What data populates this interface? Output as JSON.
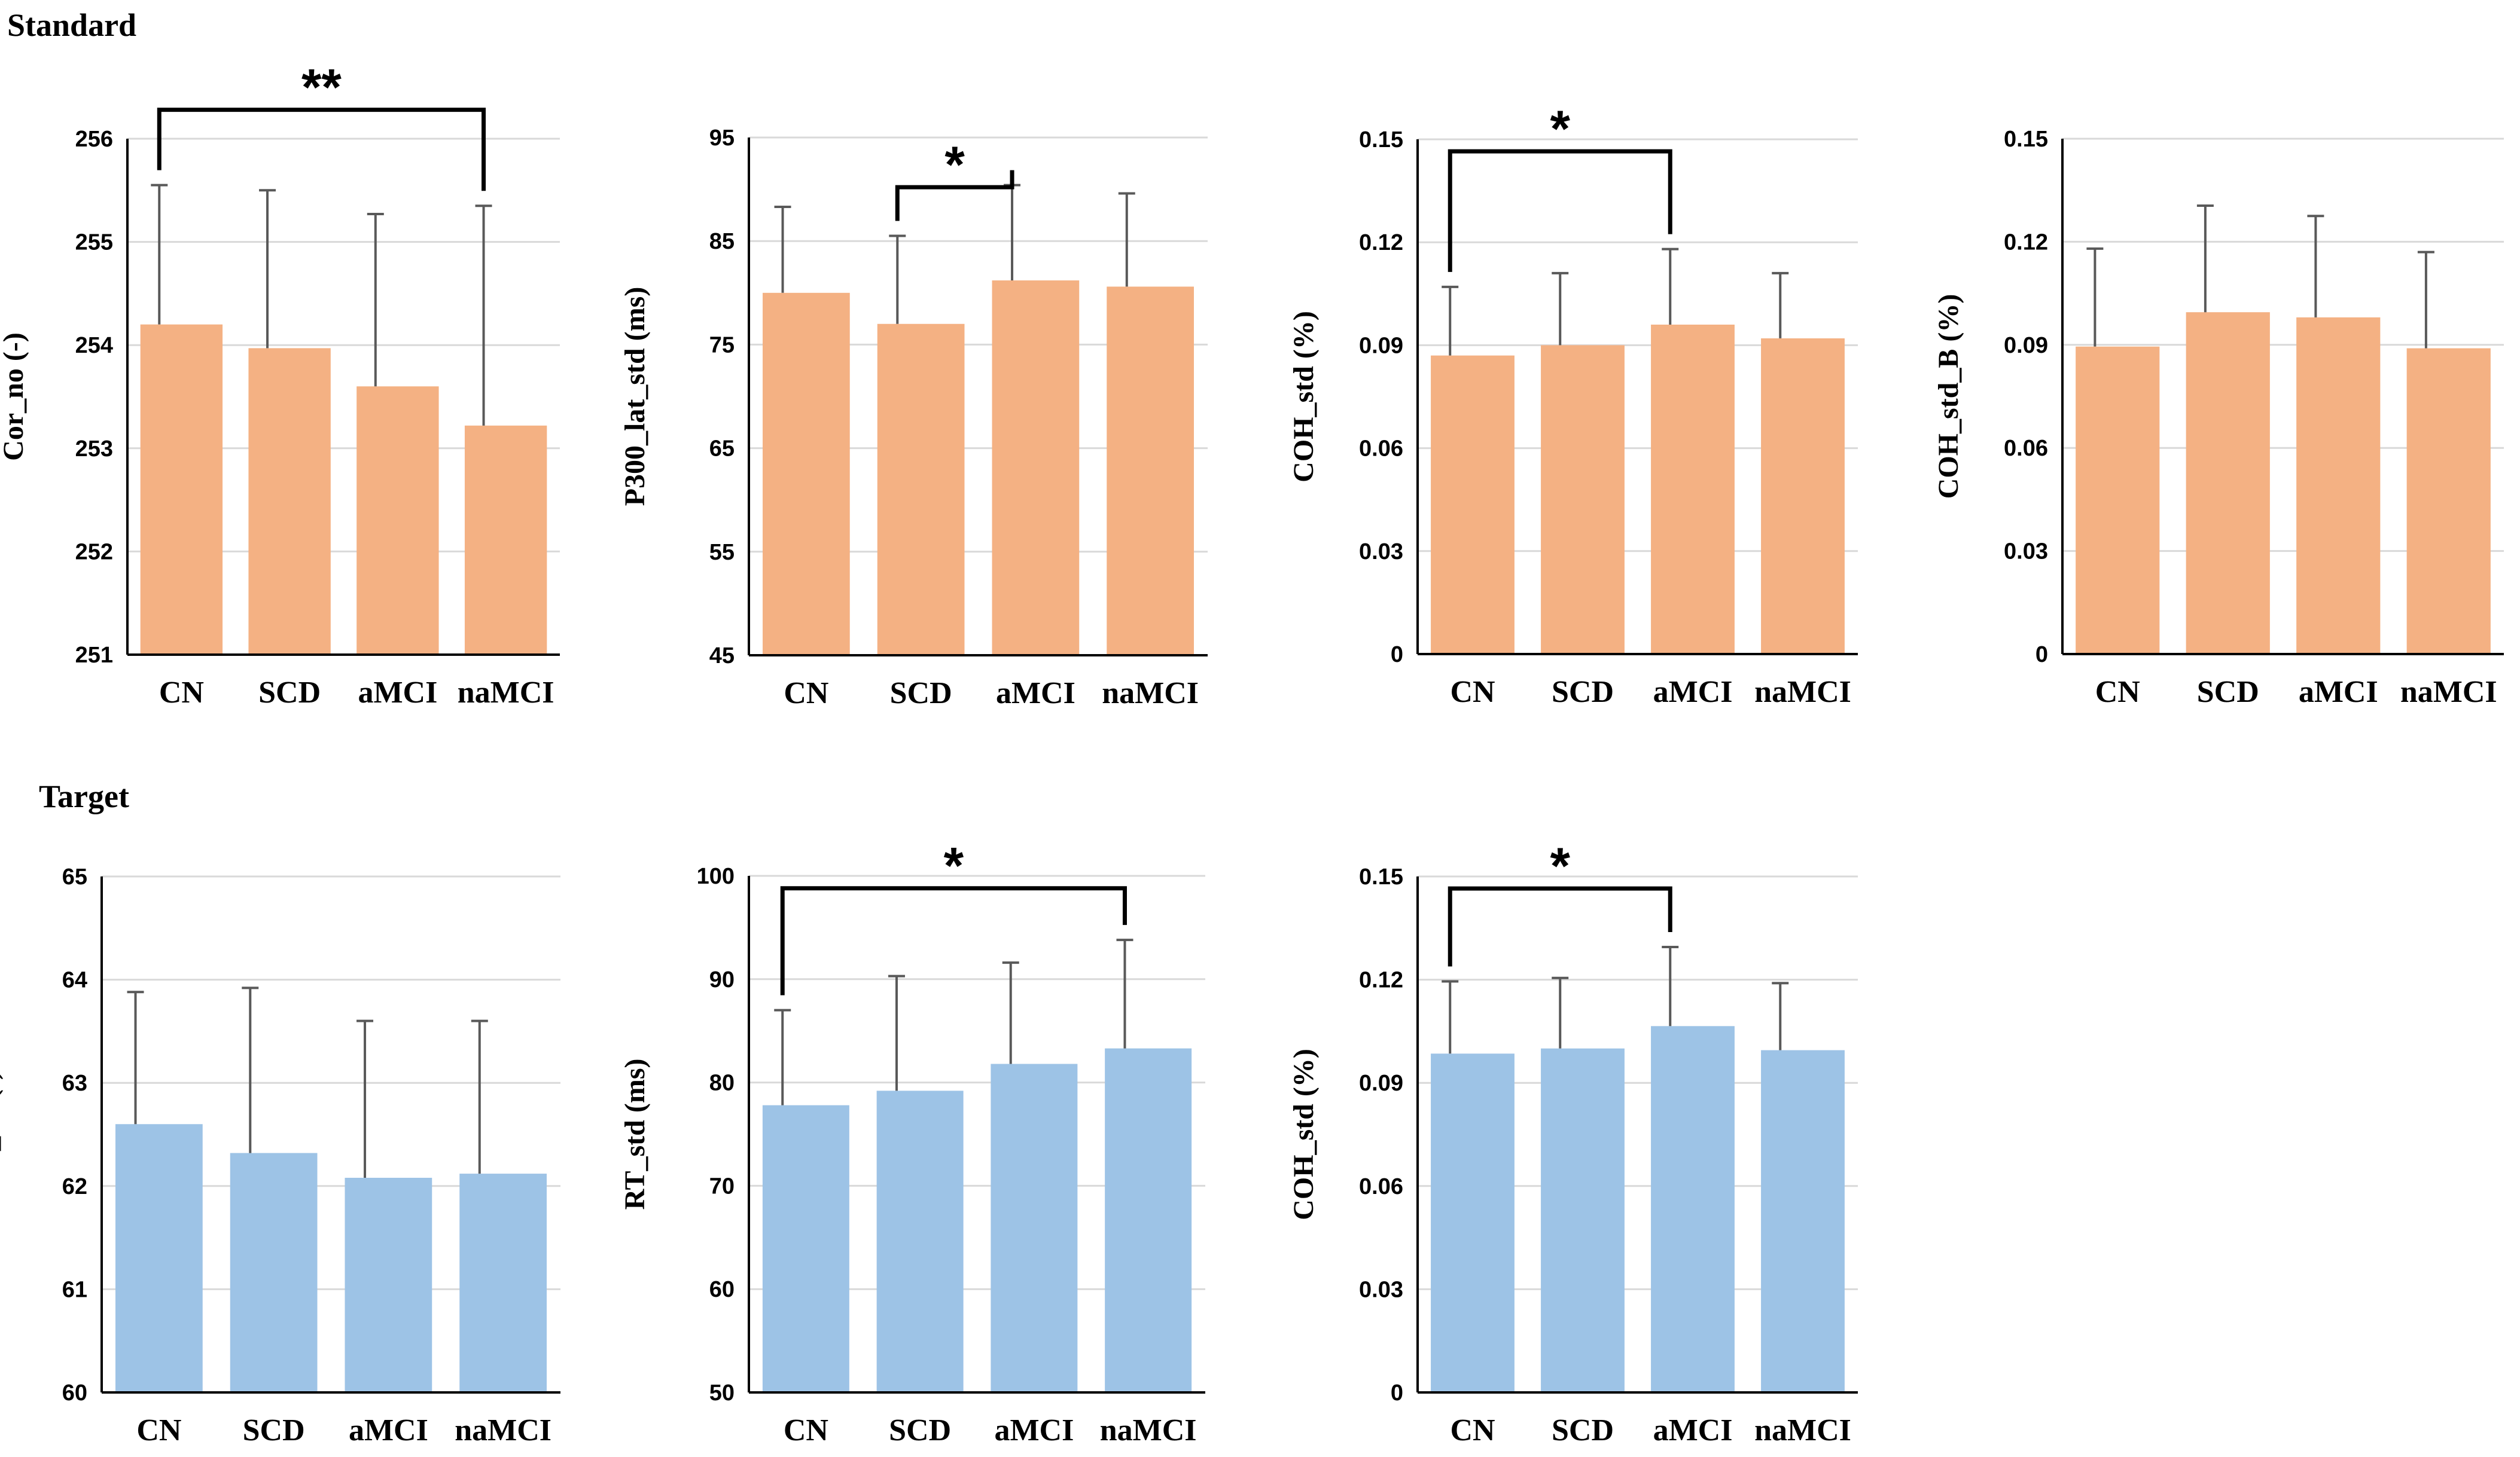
{
  "sections": [
    {
      "key": "standard",
      "title": "Standard"
    },
    {
      "key": "target",
      "title": "Target"
    }
  ],
  "colors": {
    "standard": "#f4b183",
    "target": "#9dc3e6"
  },
  "chart_data": [
    {
      "type": "bar",
      "section": "standard",
      "ylabel": "Cor_no (-)",
      "categories": [
        "CN",
        "SCD",
        "aMCI",
        "naMCI"
      ],
      "values": [
        254.2,
        253.97,
        253.6,
        253.22
      ],
      "errors": [
        1.35,
        1.53,
        1.67,
        2.13
      ],
      "ylim": [
        251,
        256
      ],
      "yticks": [
        "251",
        "252",
        "253",
        "254",
        "255",
        "256"
      ],
      "significance": {
        "from": 0,
        "to": 3,
        "label": "**",
        "level": 256.28
      }
    },
    {
      "type": "bar",
      "section": "standard",
      "ylabel": "P300_lat_std (ms)",
      "categories": [
        "CN",
        "SCD",
        "aMCI",
        "naMCI"
      ],
      "values": [
        80,
        77,
        81.2,
        80.6
      ],
      "errors": [
        8.3,
        8.5,
        9.2,
        9
      ],
      "ylim": [
        45,
        95
      ],
      "yticks": [
        "45",
        "55",
        "65",
        "75",
        "85",
        "95"
      ],
      "significance": {
        "from": 1,
        "to": 2,
        "label": "*",
        "level": 90.2
      }
    },
    {
      "type": "bar",
      "section": "standard",
      "ylabel": "COH_std (%)",
      "categories": [
        "CN",
        "SCD",
        "aMCI",
        "naMCI"
      ],
      "values": [
        0.087,
        0.09,
        0.096,
        0.092
      ],
      "errors": [
        0.02,
        0.021,
        0.022,
        0.019
      ],
      "ylim": [
        0,
        0.15
      ],
      "yticks": [
        "0",
        "0.03",
        "0.06",
        "0.09",
        "0.12",
        "0.15"
      ],
      "significance": {
        "from": 0,
        "to": 2,
        "label": "*",
        "level": 0.1465
      }
    },
    {
      "type": "bar",
      "section": "standard",
      "ylabel": "COH_std_B (%)",
      "categories": [
        "CN",
        "SCD",
        "aMCI",
        "naMCI"
      ],
      "values": [
        0.0895,
        0.0995,
        0.098,
        0.089
      ],
      "errors": [
        0.0285,
        0.031,
        0.0295,
        0.028
      ],
      "ylim": [
        0,
        0.15
      ],
      "yticks": [
        "0",
        "0.03",
        "0.06",
        "0.09",
        "0.12",
        "0.15"
      ]
    },
    {
      "type": "bar",
      "section": "target",
      "ylabel": "Cor_no (-)",
      "categories": [
        "CN",
        "SCD",
        "aMCI",
        "naMCI"
      ],
      "values": [
        62.6,
        62.32,
        62.08,
        62.12
      ],
      "errors": [
        1.28,
        1.6,
        1.52,
        1.48
      ],
      "ylim": [
        60,
        65
      ],
      "yticks": [
        "60",
        "61",
        "62",
        "63",
        "64",
        "65"
      ]
    },
    {
      "type": "bar",
      "section": "target",
      "ylabel": "RT_std (ms)",
      "categories": [
        "CN",
        "SCD",
        "aMCI",
        "naMCI"
      ],
      "values": [
        77.8,
        79.2,
        81.8,
        83.3
      ],
      "errors": [
        9.2,
        11.1,
        9.8,
        10.5
      ],
      "ylim": [
        50,
        100
      ],
      "yticks": [
        "50",
        "60",
        "70",
        "80",
        "90",
        "100"
      ],
      "significance": {
        "from": 0,
        "to": 3,
        "label": "*",
        "level": 98.8
      }
    },
    {
      "type": "bar",
      "section": "target",
      "ylabel": "COH_std (%)",
      "categories": [
        "CN",
        "SCD",
        "aMCI",
        "naMCI"
      ],
      "values": [
        0.0985,
        0.1,
        0.1065,
        0.0995
      ],
      "errors": [
        0.021,
        0.0205,
        0.023,
        0.0195
      ],
      "ylim": [
        0,
        0.15
      ],
      "yticks": [
        "0",
        "0.03",
        "0.06",
        "0.09",
        "0.12",
        "0.15"
      ],
      "significance": {
        "from": 0,
        "to": 2,
        "label": "*",
        "level": 0.1465
      }
    }
  ]
}
